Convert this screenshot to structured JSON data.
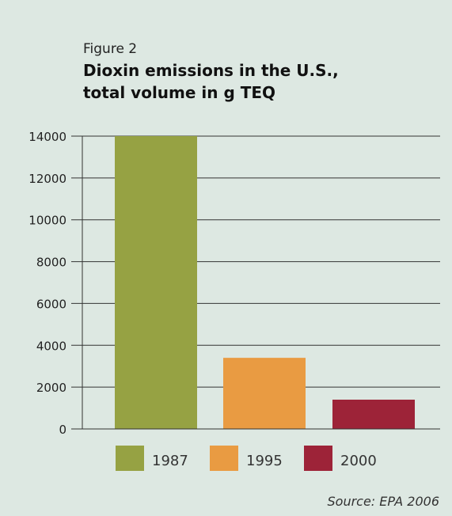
{
  "figure_label": "Figure 2",
  "title_lines": [
    "Dioxin emissions in the U.S.,",
    "total volume in g TEQ"
  ],
  "source": "Source: EPA 2006",
  "colors": {
    "background": "#dde8e2",
    "1987": "#96a243",
    "1995": "#e99b42",
    "2000": "#9d2338",
    "axis": "#333333"
  },
  "chart_data": {
    "type": "bar",
    "title": "Dioxin emissions in the U.S., total volume in g TEQ",
    "categories": [
      "1987",
      "1995",
      "2000"
    ],
    "values": [
      14000,
      3400,
      1400
    ],
    "ylim": [
      0,
      14000
    ],
    "yticks": [
      0,
      2000,
      4000,
      6000,
      8000,
      10000,
      12000,
      14000
    ],
    "grid": true,
    "legend": "bottom",
    "xlabel": "",
    "ylabel": ""
  }
}
